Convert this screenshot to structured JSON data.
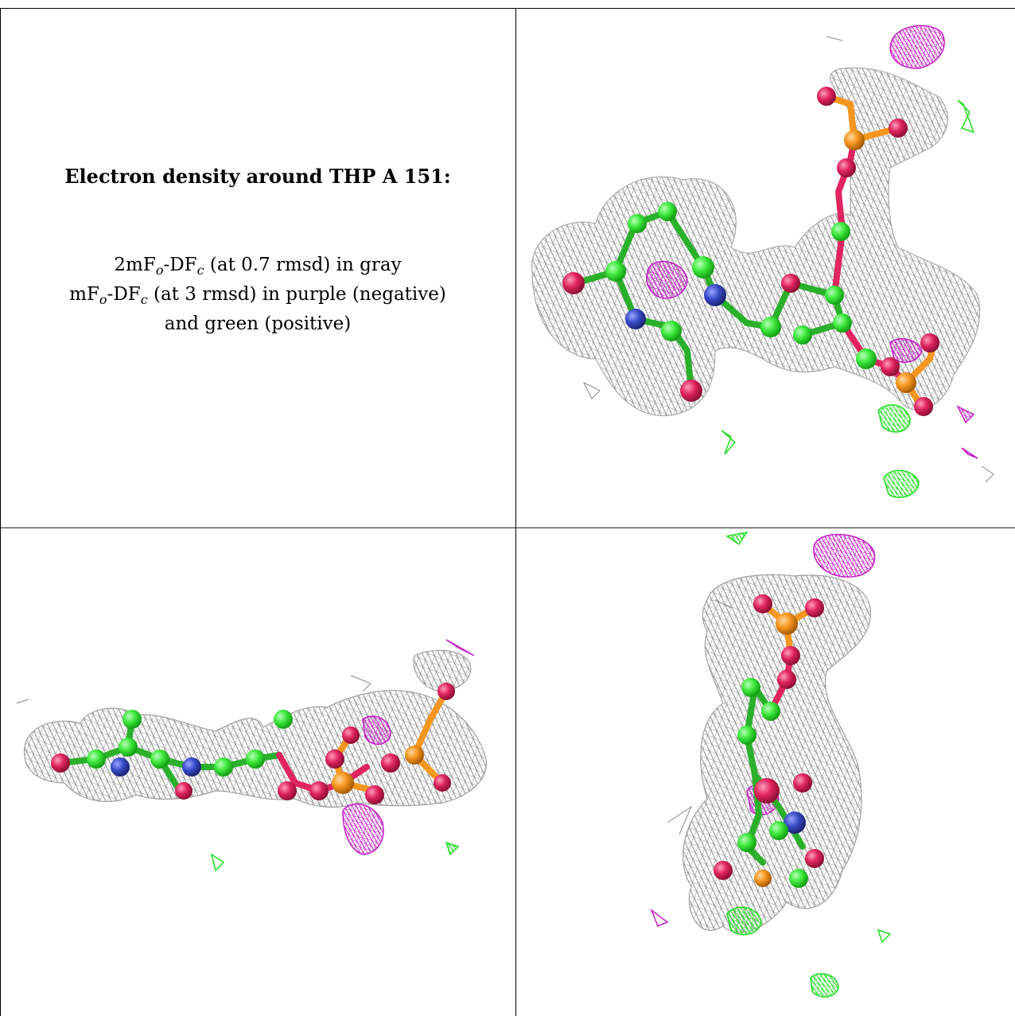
{
  "caption": {
    "title": "Electron density around THP A 151:",
    "line1_pre": "2mF",
    "line1_sub1": "o",
    "line1_mid": "-DF",
    "line1_sub2": "c",
    "line1_post": " (at 0.7 rmsd) in gray",
    "line2_pre": "mF",
    "line2_sub1": "o",
    "line2_mid": "-DF",
    "line2_sub2": "c",
    "line2_post": " (at 3 rmsd) in purple (negative)",
    "line3": "and green (positive)"
  },
  "colors": {
    "mesh_2fofc": "#9a9a9a",
    "mesh_negative": "#cc22cc",
    "mesh_positive": "#33ee33",
    "carbon": "#44ee44",
    "oxygen": "#e0245e",
    "nitrogen": "#3a4bc8",
    "phosphorus": "#f5961e"
  },
  "icons": [
    "electron-density-view-1",
    "electron-density-view-2",
    "electron-density-view-3"
  ]
}
